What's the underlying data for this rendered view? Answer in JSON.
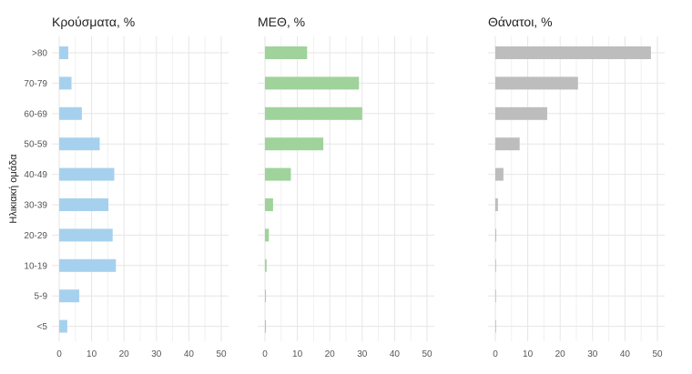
{
  "chart_data": {
    "type": "bar",
    "orientation": "horizontal",
    "ylabel": "Ηλικιακή ομάδα",
    "categories": [
      ">80",
      "70-79",
      "60-69",
      "50-59",
      "40-49",
      "30-39",
      "20-29",
      "10-19",
      "5-9",
      "<5"
    ],
    "xlim": [
      0,
      50
    ],
    "xticks": [
      0,
      10,
      20,
      30,
      40,
      50
    ],
    "grid": true,
    "legend": "none",
    "panels": [
      {
        "title": "Κρούσματα, %",
        "color": "#a6d1ee",
        "values": [
          2.8,
          3.8,
          7.0,
          12.5,
          17.0,
          15.2,
          16.5,
          17.5,
          6.2,
          2.5
        ]
      },
      {
        "title": "ΜΕΘ, %",
        "color": "#9fd39b",
        "values": [
          13.0,
          29.0,
          30.0,
          18.0,
          8.0,
          2.5,
          1.2,
          0.5,
          0.3,
          0.3
        ]
      },
      {
        "title": "Θάνατοι, %",
        "color": "#bdbdbd",
        "values": [
          48.0,
          25.5,
          16.0,
          7.5,
          2.5,
          0.8,
          0.3,
          0.2,
          0.1,
          0.1
        ]
      }
    ]
  }
}
